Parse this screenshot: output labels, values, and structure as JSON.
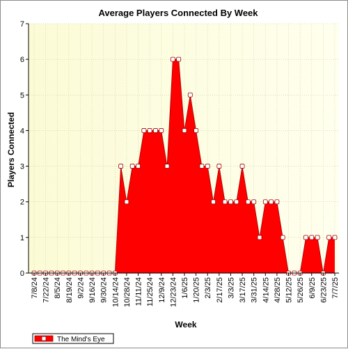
{
  "colors": {
    "series_fill": "#ff0000",
    "series_line": "#a00000",
    "bg_left": "#fbfbd6",
    "bg_right": "#ffffee",
    "grid": "#c8c8a0"
  },
  "chart_data": {
    "type": "area",
    "title": "Average Players Connected By Week",
    "xlabel": "Week",
    "ylabel": "Players Connected",
    "ylim": [
      0,
      7
    ],
    "yticks": [
      0,
      1,
      2,
      3,
      4,
      5,
      6,
      7
    ],
    "grid": true,
    "legend_position": "bottom-left",
    "x": [
      "7/8/24",
      "7/15/24",
      "7/22/24",
      "7/29/24",
      "8/5/24",
      "8/12/24",
      "8/19/24",
      "8/26/24",
      "9/2/24",
      "9/9/24",
      "9/16/24",
      "9/23/24",
      "9/30/24",
      "10/7/24",
      "10/14/24",
      "10/21/24",
      "10/28/24",
      "11/4/24",
      "11/11/24",
      "11/18/24",
      "11/25/24",
      "12/2/24",
      "12/9/24",
      "12/16/24",
      "12/23/24",
      "12/30/24",
      "1/6/25",
      "1/13/25",
      "1/20/25",
      "1/27/25",
      "2/3/25",
      "2/10/25",
      "2/17/25",
      "2/24/25",
      "3/3/25",
      "3/10/25",
      "3/17/25",
      "3/24/25",
      "3/31/25",
      "4/7/25",
      "4/14/25",
      "4/21/25",
      "4/28/25",
      "5/5/25",
      "5/12/25",
      "5/19/25",
      "5/26/25",
      "6/2/25",
      "6/9/25",
      "6/16/25",
      "6/23/25",
      "6/30/25",
      "7/7/25"
    ],
    "x_tick_labels": [
      "7/8/24",
      "7/22/24",
      "8/5/24",
      "8/19/24",
      "9/2/24",
      "9/16/24",
      "9/30/24",
      "10/14/24",
      "10/28/24",
      "11/11/24",
      "11/25/24",
      "12/9/24",
      "12/23/24",
      "1/6/25",
      "1/20/25",
      "2/3/25",
      "2/17/25",
      "3/3/25",
      "3/17/25",
      "3/31/25",
      "4/14/25",
      "4/28/25",
      "5/12/25",
      "5/26/25",
      "6/9/25",
      "6/23/25",
      "7/7/25"
    ],
    "series": [
      {
        "name": "The Mind's Eye",
        "values": [
          0,
          0,
          0,
          0,
          0,
          0,
          0,
          0,
          0,
          0,
          0,
          0,
          0,
          0,
          0,
          3,
          2,
          3,
          3,
          4,
          4,
          4,
          4,
          3,
          6,
          6,
          4,
          5,
          4,
          3,
          3,
          2,
          3,
          2,
          2,
          2,
          3,
          2,
          2,
          1,
          2,
          2,
          2,
          1,
          0,
          0,
          0,
          1,
          1,
          1,
          0,
          1,
          1
        ]
      }
    ]
  }
}
